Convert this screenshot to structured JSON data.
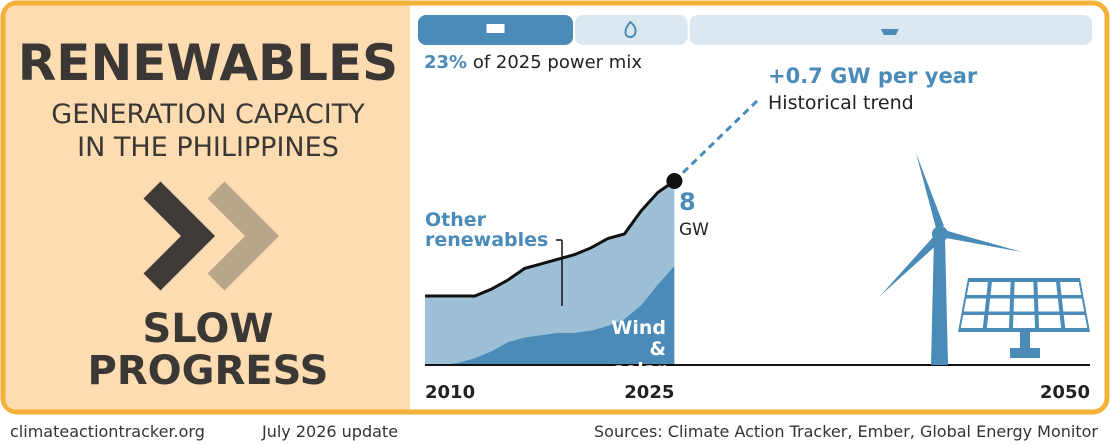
{
  "title": "RENEWABLES",
  "subtitle": "GENERATION CAPACITY IN THE PHILIPPINES",
  "rating": "SLOW PROGRESS",
  "footer": {
    "site": "climateactiontracker.org",
    "update": "July 2026 update",
    "sources": "Sources: Climate Action Tracker, Ember, Global Energy Monitor"
  },
  "power_mix": {
    "values": [
      23,
      17,
      60
    ],
    "colors": [
      "#4a8bb8",
      "#dbe7f1",
      "#dbe7f1"
    ],
    "share_label": "23%",
    "caption": "of 2025 power mix"
  },
  "chart_data": {
    "type": "area",
    "x": [
      2010,
      2011,
      2012,
      2013,
      2014,
      2015,
      2016,
      2017,
      2018,
      2019,
      2020,
      2021,
      2022,
      2023,
      2024,
      2025
    ],
    "series": [
      {
        "name": "Wind & solar",
        "color": "#4a8bb8",
        "values": [
          0,
          0,
          0.1,
          0.3,
          0.6,
          1.0,
          1.2,
          1.3,
          1.4,
          1.4,
          1.5,
          1.7,
          2.0,
          2.6,
          3.5,
          4.3
        ]
      },
      {
        "name": "Other renewables",
        "color": "#9dc0d7",
        "values": [
          3.0,
          3.0,
          2.9,
          2.7,
          2.7,
          2.7,
          3.0,
          3.1,
          3.2,
          3.4,
          3.6,
          3.8,
          3.7,
          4.1,
          4.0,
          3.7
        ]
      }
    ],
    "latest": {
      "value": 8,
      "unit": "GW"
    },
    "trend": {
      "x": [
        2025,
        2030
      ],
      "values": [
        8,
        11.5
      ],
      "label": "+0.7 GW per year",
      "caption": "Historical trend"
    },
    "xlim": [
      2010,
      2050
    ],
    "ylim": [
      0,
      14
    ],
    "xticks": [
      2010,
      2025,
      2050
    ]
  }
}
